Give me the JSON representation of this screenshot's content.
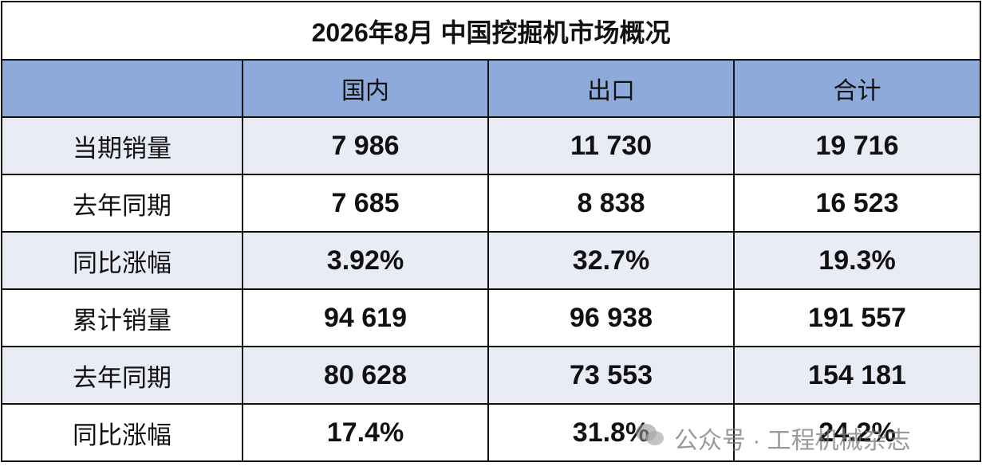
{
  "table": {
    "title": "2026年8月 中国挖掘机市场概况",
    "header": [
      "国内",
      "出口",
      "合计"
    ],
    "rows": [
      [
        "当期销量",
        "7 986",
        "11 730",
        "19 716"
      ],
      [
        "去年同期",
        "7 685",
        "8 838",
        "16 523"
      ],
      [
        "同比涨幅",
        "3.92%",
        "32.7%",
        "19.3%"
      ],
      [
        "累计销量",
        "94 619",
        "96 938",
        "191 557"
      ],
      [
        "去年同期",
        "80 628",
        "73 553",
        "154 181"
      ],
      [
        "同比涨幅",
        "17.4%",
        "31.8%",
        "24.2%"
      ]
    ]
  },
  "watermark": "公众号 · 工程机械杂志"
}
